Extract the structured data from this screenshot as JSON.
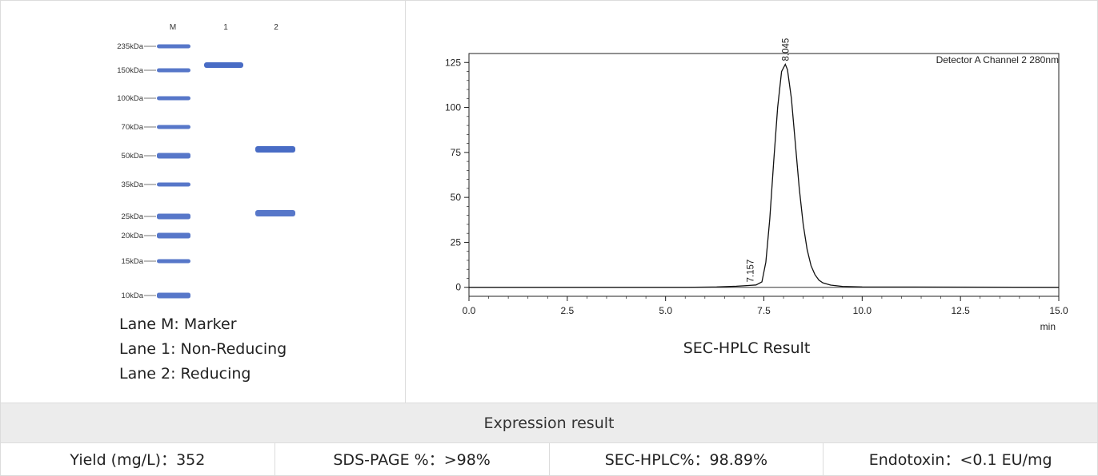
{
  "gel": {
    "lane_headers": [
      "M",
      "1",
      "2"
    ],
    "marker_labels": [
      "235kDa",
      "150kDa",
      "100kDa",
      "70kDa",
      "50kDa",
      "35kDa",
      "25kDa",
      "20kDa",
      "15kDa",
      "10kDa"
    ],
    "legend": [
      "Lane M: Marker",
      "Lane 1: Non-Reducing",
      "Lane 2: Reducing"
    ],
    "band_color": "#3a5fc0"
  },
  "chart_data": {
    "type": "line",
    "title": "SEC-HPLC Result",
    "annotation": "Detector A Channel 2 280nm",
    "xlabel": "min",
    "ylabel": "",
    "xlim": [
      0,
      15
    ],
    "ylim": [
      -5,
      130
    ],
    "x_ticks": [
      "0.0",
      "2.5",
      "5.0",
      "7.5",
      "10.0",
      "12.5",
      "15.0"
    ],
    "y_ticks": [
      "0",
      "25",
      "50",
      "75",
      "100",
      "125"
    ],
    "peaks": [
      {
        "retention_time": 7.157,
        "label": "7.157",
        "height": 1
      },
      {
        "retention_time": 8.045,
        "label": "8.045",
        "height": 124
      }
    ],
    "series": [
      {
        "x": [
          0,
          5.5,
          6.3,
          6.8,
          7.1,
          7.3,
          7.45,
          7.55,
          7.65,
          7.75,
          7.85,
          7.95,
          8.045,
          8.1,
          8.2,
          8.3,
          8.4,
          8.5,
          8.6,
          8.7,
          8.8,
          8.9,
          9.0,
          9.2,
          9.5,
          10.0,
          15.0
        ],
        "y": [
          0,
          0,
          0.2,
          0.6,
          1,
          1.3,
          3,
          14,
          38,
          70,
          100,
          120,
          124,
          121,
          105,
          80,
          55,
          35,
          21,
          12,
          7,
          4,
          2.5,
          1.2,
          0.5,
          0.2,
          0
        ]
      }
    ],
    "grid": false,
    "line_color": "#111111"
  },
  "expression": {
    "header": "Expression result",
    "cells": [
      "Yield (mg/L)：352",
      "SDS-PAGE %：>98%",
      "SEC-HPLC%：98.89%",
      "Endotoxin：<0.1 EU/mg"
    ]
  }
}
